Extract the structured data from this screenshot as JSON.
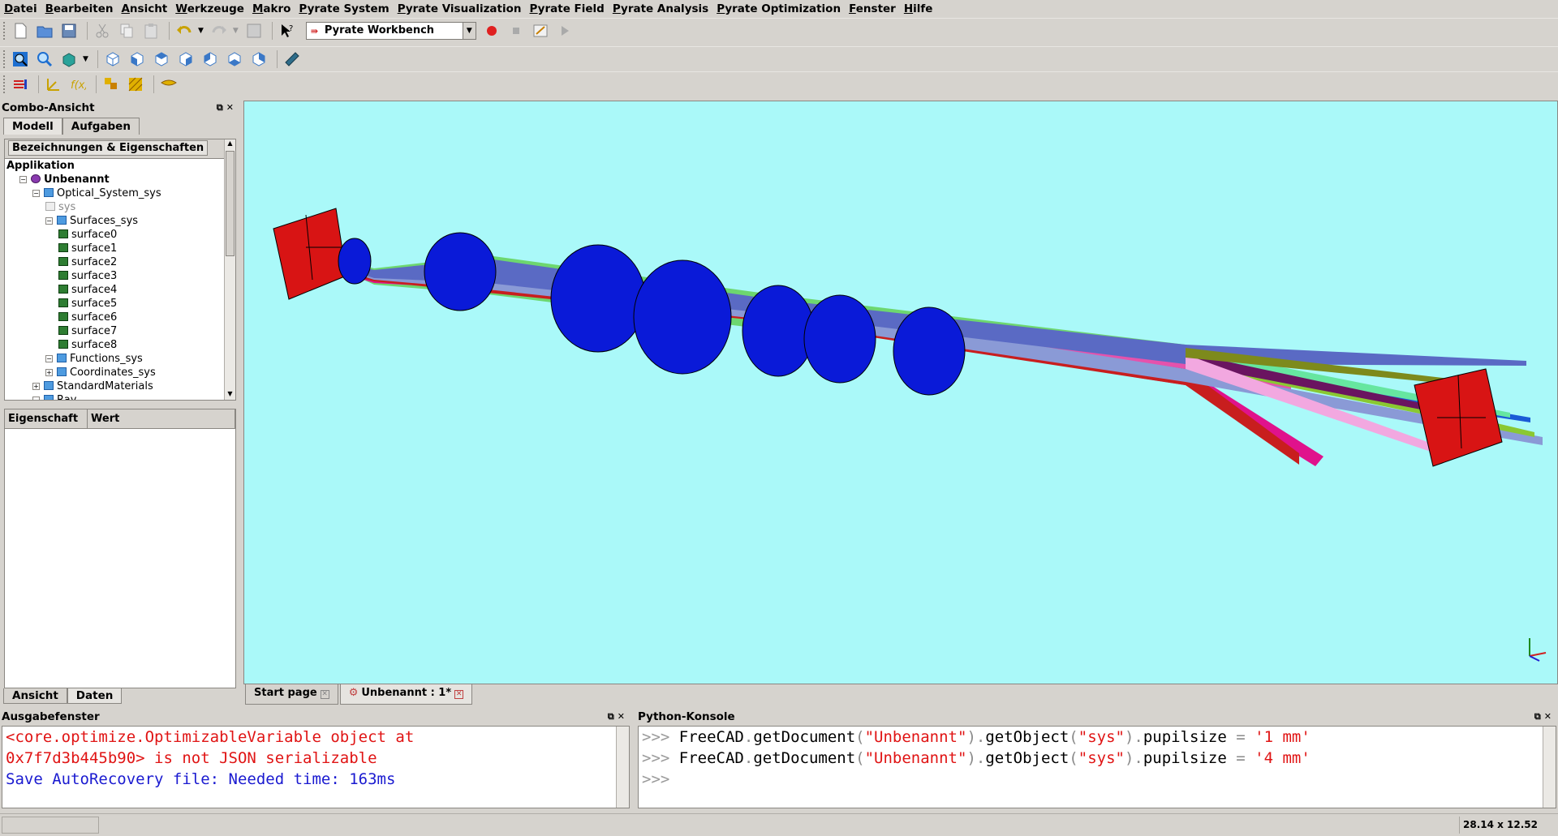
{
  "menu": [
    "Datei",
    "Bearbeiten",
    "Ansicht",
    "Werkzeuge",
    "Makro",
    "Pyrate System",
    "Pyrate Visualization",
    "Pyrate Field",
    "Pyrate Analysis",
    "Pyrate Optimization",
    "Fenster",
    "Hilfe"
  ],
  "toolbar": {
    "workbench_label": "Pyrate Workbench"
  },
  "combo": {
    "title": "Combo-Ansicht",
    "tabs": [
      "Modell",
      "Aufgaben"
    ],
    "tree_header": "Bezeichnungen & Eigenschaften",
    "tree": [
      {
        "label": "Applikation",
        "level": 0,
        "kind": "root"
      },
      {
        "label": "Unbenannt",
        "level": 1,
        "kind": "doc"
      },
      {
        "label": "Optical_System_sys",
        "level": 2,
        "kind": "folder"
      },
      {
        "label": "sys",
        "level": 3,
        "kind": "sys"
      },
      {
        "label": "Surfaces_sys",
        "level": 3,
        "kind": "folder"
      },
      {
        "label": "surface0",
        "level": 4,
        "kind": "feature"
      },
      {
        "label": "surface1",
        "level": 4,
        "kind": "feature"
      },
      {
        "label": "surface2",
        "level": 4,
        "kind": "feature"
      },
      {
        "label": "surface3",
        "level": 4,
        "kind": "feature"
      },
      {
        "label": "surface4",
        "level": 4,
        "kind": "feature"
      },
      {
        "label": "surface5",
        "level": 4,
        "kind": "feature"
      },
      {
        "label": "surface6",
        "level": 4,
        "kind": "feature"
      },
      {
        "label": "surface7",
        "level": 4,
        "kind": "feature"
      },
      {
        "label": "surface8",
        "level": 4,
        "kind": "feature"
      },
      {
        "label": "Functions_sys",
        "level": 3,
        "kind": "folder"
      },
      {
        "label": "Coordinates_sys",
        "level": 3,
        "kind": "folder"
      },
      {
        "label": "StandardMaterials",
        "level": 2,
        "kind": "folder"
      },
      {
        "label": "Ray",
        "level": 2,
        "kind": "folder"
      }
    ],
    "prop_columns": [
      "Eigenschaft",
      "Wert"
    ],
    "bottom_tabs": [
      "Ansicht",
      "Daten"
    ]
  },
  "view_tabs": [
    {
      "label": "Start page",
      "active": false
    },
    {
      "label": "Unbenannt : 1*",
      "active": true
    }
  ],
  "output": {
    "title": "Ausgabefenster",
    "lines": [
      {
        "text": "<core.optimize.OptimizableVariable object at",
        "kind": "error"
      },
      {
        "text": "0x7f7d3b445b90> is not JSON serializable",
        "kind": "error"
      },
      {
        "text": "Save AutoRecovery file: Needed time: 163ms",
        "kind": "info"
      }
    ]
  },
  "python": {
    "title": "Python-Konsole",
    "prompt": ">>>",
    "lines": [
      {
        "obj": "FreeCAD",
        "m1": "getDocument",
        "a1": "\"Unbenannt\"",
        "m2": "getObject",
        "a2": "\"sys\"",
        "attr": "pupilsize",
        "val": "'1 mm'"
      },
      {
        "obj": "FreeCAD",
        "m1": "getDocument",
        "a1": "\"Unbenannt\"",
        "m2": "getObject",
        "a2": "\"sys\"",
        "attr": "pupilsize",
        "val": "'4 mm'"
      }
    ]
  },
  "status": {
    "dimensions": "28.14 x 12.52 mm"
  },
  "colors": {
    "viewport_bg": "#aaf9f9",
    "lens_blue": "#0a1ad8",
    "plane_red": "#d81414",
    "error_red": "#e01414",
    "info_blue": "#1a1ad0"
  }
}
